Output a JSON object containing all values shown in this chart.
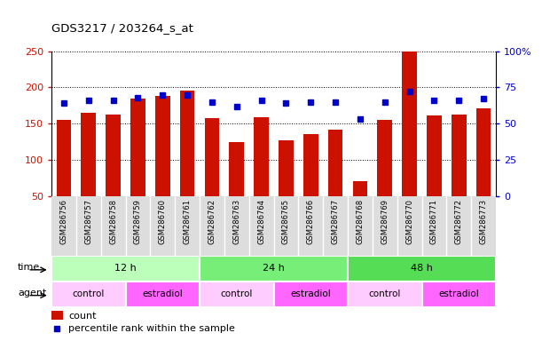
{
  "title": "GDS3217 / 203264_s_at",
  "samples": [
    "GSM286756",
    "GSM286757",
    "GSM286758",
    "GSM286759",
    "GSM286760",
    "GSM286761",
    "GSM286762",
    "GSM286763",
    "GSM286764",
    "GSM286765",
    "GSM286766",
    "GSM286767",
    "GSM286768",
    "GSM286769",
    "GSM286770",
    "GSM286771",
    "GSM286772",
    "GSM286773"
  ],
  "counts": [
    155,
    165,
    163,
    185,
    188,
    196,
    157,
    124,
    159,
    127,
    136,
    142,
    70,
    155,
    249,
    161,
    163,
    171
  ],
  "percentile_ranks": [
    64,
    66,
    66,
    68,
    70,
    70,
    65,
    62,
    66,
    64,
    65,
    65,
    53,
    65,
    72,
    66,
    66,
    67
  ],
  "ylim_left": [
    50,
    250
  ],
  "ylim_right": [
    0,
    100
  ],
  "yticks_left": [
    50,
    100,
    150,
    200,
    250
  ],
  "yticks_right": [
    0,
    25,
    50,
    75,
    100
  ],
  "ytick_labels_right": [
    "0",
    "25",
    "50",
    "75",
    "100%"
  ],
  "bar_color": "#CC1100",
  "dot_color": "#0000CC",
  "left_tick_color": "#CC1100",
  "right_tick_color": "#0000CC",
  "xticklabel_bg": "#DDDDDD",
  "time_groups": [
    {
      "label": "12 h",
      "start": 0,
      "end": 6,
      "color": "#BBFFBB"
    },
    {
      "label": "24 h",
      "start": 6,
      "end": 12,
      "color": "#77EE77"
    },
    {
      "label": "48 h",
      "start": 12,
      "end": 18,
      "color": "#55DD55"
    }
  ],
  "agent_groups": [
    {
      "label": "control",
      "start": 0,
      "end": 3,
      "color": "#FFCCFF"
    },
    {
      "label": "estradiol",
      "start": 3,
      "end": 6,
      "color": "#FF66FF"
    },
    {
      "label": "control",
      "start": 6,
      "end": 9,
      "color": "#FFCCFF"
    },
    {
      "label": "estradiol",
      "start": 9,
      "end": 12,
      "color": "#FF66FF"
    },
    {
      "label": "control",
      "start": 12,
      "end": 15,
      "color": "#FFCCFF"
    },
    {
      "label": "estradiol",
      "start": 15,
      "end": 18,
      "color": "#FF66FF"
    }
  ],
  "legend_count_label": "count",
  "legend_pct_label": "percentile rank within the sample",
  "time_label": "time",
  "agent_label": "agent"
}
